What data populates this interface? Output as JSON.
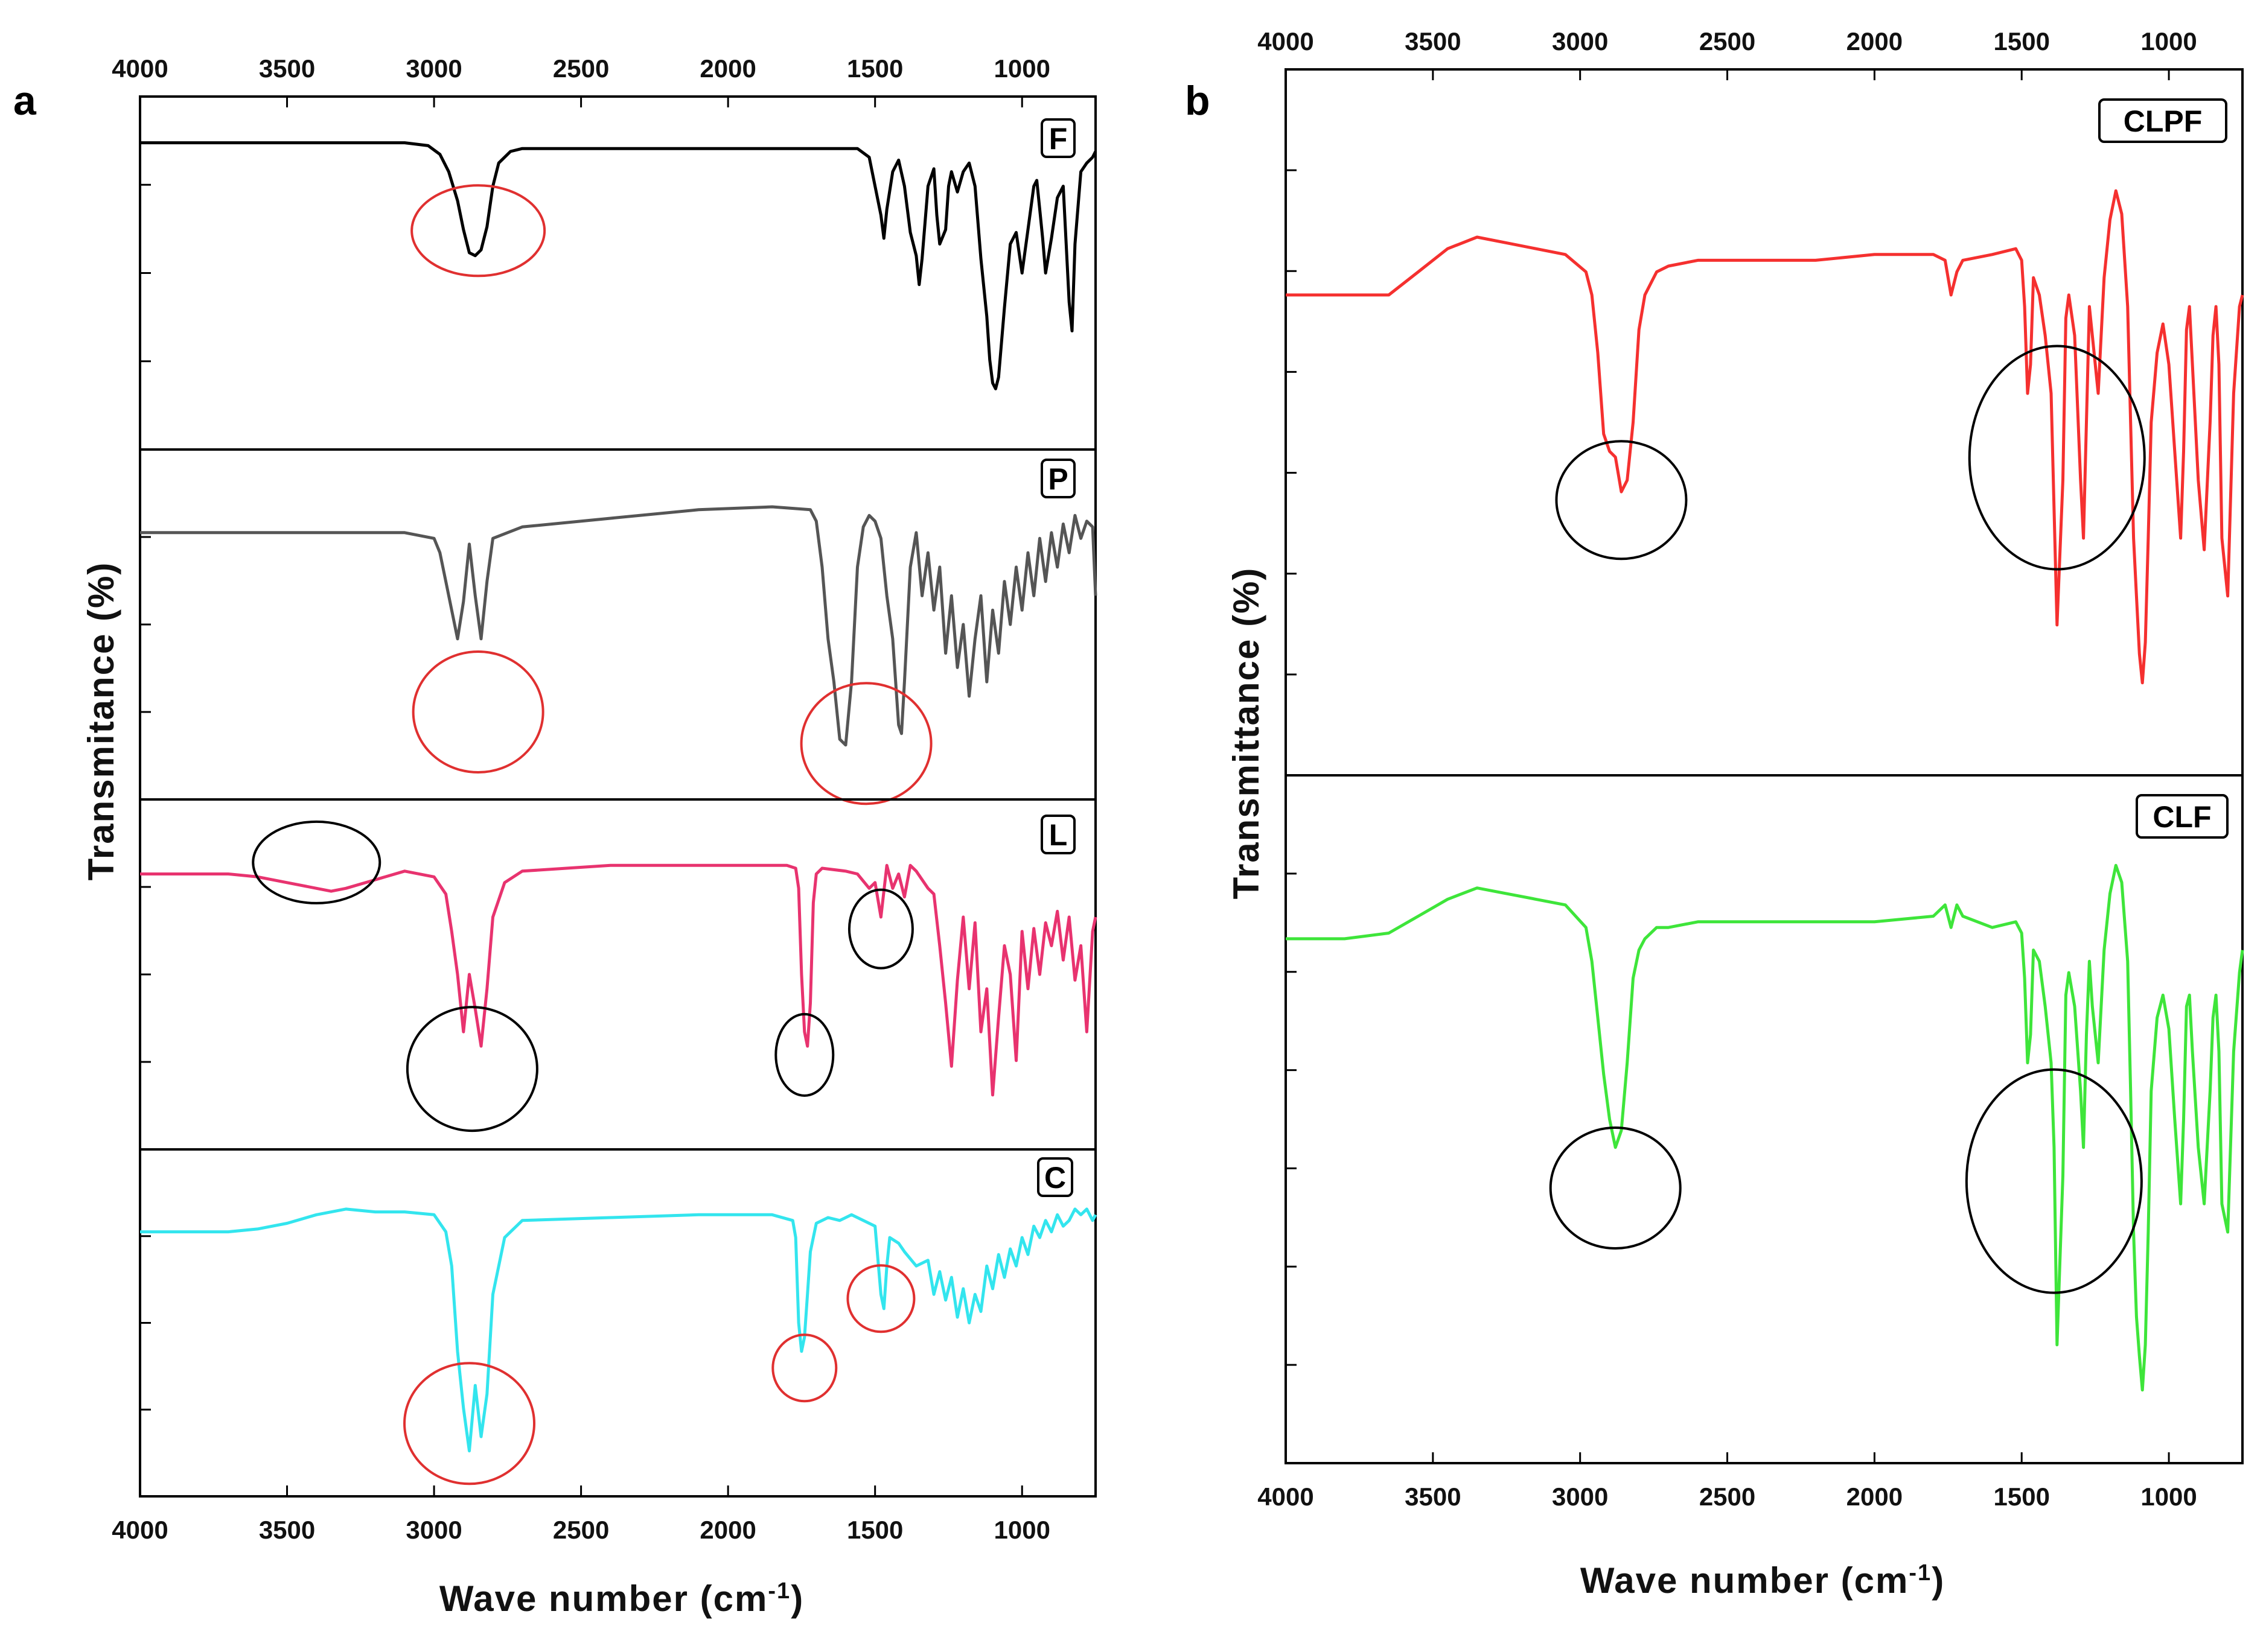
{
  "chart_data": [
    {
      "type": "line",
      "panel_label": "a",
      "title": "",
      "xlabel": "Wave number (cm",
      "xlabel_sup": "-1",
      "xlabel_close": ")",
      "ylabel": "Transmitance (%)",
      "xlim": [
        4000,
        750
      ],
      "x_ticks": [
        4000,
        3500,
        3000,
        2500,
        2000,
        1500,
        1000
      ],
      "grid": false,
      "series": [
        {
          "name": "F",
          "color": "#000000",
          "x": [
            4000,
            3700,
            3400,
            3100,
            3020,
            2980,
            2950,
            2920,
            2900,
            2880,
            2860,
            2840,
            2820,
            2800,
            2780,
            2740,
            2700,
            2400,
            2100,
            1800,
            1560,
            1520,
            1500,
            1480,
            1470,
            1460,
            1440,
            1420,
            1400,
            1380,
            1360,
            1350,
            1340,
            1320,
            1300,
            1290,
            1280,
            1260,
            1250,
            1240,
            1220,
            1200,
            1180,
            1160,
            1140,
            1120,
            1110,
            1100,
            1090,
            1080,
            1060,
            1040,
            1020,
            1000,
            980,
            960,
            950,
            940,
            930,
            920,
            900,
            880,
            860,
            850,
            840,
            830,
            820,
            800,
            780,
            760,
            750
          ],
          "y": [
            95,
            95,
            95,
            95,
            94,
            91,
            85,
            75,
            65,
            57,
            56,
            58,
            66,
            80,
            88,
            92,
            93,
            93,
            93,
            93,
            93,
            90,
            80,
            70,
            62,
            72,
            85,
            89,
            80,
            64,
            56,
            46,
            55,
            80,
            86,
            70,
            60,
            65,
            80,
            85,
            78,
            85,
            88,
            80,
            55,
            35,
            20,
            12,
            10,
            14,
            38,
            60,
            64,
            50,
            65,
            80,
            82,
            72,
            62,
            50,
            62,
            76,
            80,
            60,
            40,
            30,
            60,
            85,
            88,
            90,
            92
          ]
        },
        {
          "name": "P",
          "color": "#555555",
          "x": [
            4000,
            3700,
            3400,
            3100,
            3000,
            2980,
            2960,
            2940,
            2920,
            2900,
            2880,
            2860,
            2840,
            2820,
            2800,
            2700,
            2400,
            2100,
            1850,
            1720,
            1700,
            1680,
            1660,
            1640,
            1620,
            1600,
            1580,
            1560,
            1540,
            1520,
            1500,
            1480,
            1460,
            1440,
            1420,
            1410,
            1400,
            1380,
            1360,
            1340,
            1320,
            1300,
            1280,
            1260,
            1240,
            1220,
            1200,
            1180,
            1160,
            1140,
            1120,
            1100,
            1080,
            1060,
            1040,
            1020,
            1000,
            980,
            960,
            940,
            920,
            900,
            880,
            860,
            840,
            820,
            800,
            780,
            760,
            750
          ],
          "y": [
            82,
            82,
            82,
            82,
            80,
            75,
            65,
            55,
            45,
            58,
            78,
            60,
            45,
            65,
            80,
            84,
            87,
            90,
            91,
            90,
            86,
            70,
            45,
            30,
            10,
            8,
            30,
            70,
            84,
            88,
            86,
            80,
            60,
            45,
            15,
            12,
            30,
            70,
            82,
            60,
            75,
            55,
            70,
            40,
            60,
            35,
            50,
            25,
            45,
            60,
            30,
            55,
            40,
            65,
            50,
            70,
            55,
            75,
            60,
            80,
            65,
            82,
            70,
            85,
            75,
            88,
            80,
            86,
            84,
            60
          ]
        },
        {
          "name": "L",
          "color": "#E8336F",
          "x": [
            4000,
            3700,
            3600,
            3500,
            3400,
            3350,
            3300,
            3200,
            3100,
            3000,
            2960,
            2940,
            2920,
            2900,
            2880,
            2860,
            2840,
            2820,
            2800,
            2760,
            2700,
            2400,
            2100,
            1800,
            1770,
            1760,
            1750,
            1740,
            1730,
            1720,
            1710,
            1700,
            1680,
            1600,
            1560,
            1520,
            1500,
            1480,
            1460,
            1440,
            1420,
            1400,
            1380,
            1360,
            1320,
            1300,
            1280,
            1260,
            1240,
            1220,
            1200,
            1180,
            1160,
            1140,
            1120,
            1100,
            1080,
            1060,
            1040,
            1020,
            1000,
            980,
            960,
            940,
            920,
            900,
            880,
            860,
            840,
            820,
            800,
            780,
            760,
            750
          ],
          "y": [
            85,
            85,
            84,
            82,
            80,
            79,
            80,
            83,
            86,
            84,
            78,
            65,
            50,
            30,
            50,
            38,
            25,
            45,
            70,
            82,
            86,
            88,
            88,
            88,
            87,
            80,
            50,
            30,
            25,
            40,
            75,
            85,
            87,
            86,
            85,
            80,
            82,
            70,
            88,
            80,
            85,
            77,
            88,
            86,
            80,
            78,
            60,
            40,
            18,
            48,
            70,
            45,
            68,
            30,
            45,
            8,
            35,
            60,
            50,
            20,
            65,
            45,
            66,
            50,
            68,
            60,
            72,
            55,
            70,
            48,
            60,
            30,
            65,
            70
          ]
        },
        {
          "name": "C",
          "color": "#33E5EE",
          "x": [
            4000,
            3700,
            3600,
            3500,
            3400,
            3300,
            3200,
            3100,
            3000,
            2960,
            2940,
            2920,
            2900,
            2880,
            2860,
            2840,
            2820,
            2800,
            2760,
            2700,
            2400,
            2100,
            1850,
            1780,
            1770,
            1760,
            1750,
            1740,
            1730,
            1720,
            1700,
            1660,
            1620,
            1580,
            1540,
            1500,
            1480,
            1470,
            1460,
            1450,
            1420,
            1400,
            1360,
            1320,
            1300,
            1280,
            1260,
            1240,
            1220,
            1200,
            1180,
            1160,
            1140,
            1120,
            1100,
            1080,
            1060,
            1040,
            1020,
            1000,
            980,
            960,
            940,
            920,
            900,
            880,
            860,
            840,
            820,
            800,
            780,
            760,
            750
          ],
          "y": [
            82,
            82,
            83,
            85,
            88,
            90,
            89,
            89,
            88,
            82,
            70,
            40,
            20,
            5,
            28,
            10,
            25,
            60,
            80,
            86,
            87,
            88,
            88,
            86,
            80,
            50,
            40,
            45,
            60,
            75,
            85,
            87,
            86,
            88,
            86,
            84,
            60,
            55,
            70,
            80,
            78,
            75,
            70,
            72,
            60,
            68,
            58,
            66,
            52,
            62,
            50,
            60,
            54,
            70,
            62,
            74,
            66,
            76,
            70,
            80,
            74,
            84,
            80,
            86,
            82,
            88,
            84,
            86,
            90,
            88,
            90,
            86,
            88
          ]
        }
      ],
      "legend": [
        "F",
        "P",
        "L",
        "C"
      ],
      "annotations": "red and black ellipses highlight characteristic bands"
    },
    {
      "type": "line",
      "panel_label": "b",
      "title": "",
      "xlabel": "Wave number (cm",
      "xlabel_sup": "-1",
      "xlabel_close": ")",
      "ylabel": "Transmittance (%)",
      "xlim": [
        4000,
        750
      ],
      "x_ticks": [
        4000,
        3500,
        3000,
        2500,
        2000,
        1500,
        1000
      ],
      "grid": false,
      "series": [
        {
          "name": "CLPF",
          "color": "#F5302F",
          "x": [
            4000,
            3800,
            3650,
            3550,
            3450,
            3350,
            3250,
            3150,
            3050,
            2980,
            2960,
            2940,
            2920,
            2900,
            2880,
            2860,
            2840,
            2820,
            2800,
            2780,
            2740,
            2700,
            2600,
            2400,
            2200,
            2000,
            1800,
            1760,
            1740,
            1720,
            1700,
            1600,
            1520,
            1500,
            1490,
            1480,
            1470,
            1460,
            1440,
            1420,
            1400,
            1390,
            1380,
            1360,
            1350,
            1340,
            1320,
            1300,
            1290,
            1280,
            1270,
            1260,
            1240,
            1220,
            1200,
            1180,
            1160,
            1140,
            1130,
            1120,
            1110,
            1100,
            1090,
            1080,
            1070,
            1060,
            1040,
            1020,
            1000,
            980,
            960,
            950,
            940,
            930,
            920,
            900,
            880,
            860,
            850,
            840,
            830,
            820,
            800,
            780,
            760,
            750
          ],
          "y": [
            72,
            72,
            72,
            76,
            80,
            82,
            81,
            80,
            79,
            76,
            72,
            62,
            48,
            45,
            44,
            38,
            40,
            50,
            66,
            72,
            76,
            77,
            78,
            78,
            78,
            79,
            79,
            78,
            72,
            76,
            78,
            79,
            80,
            78,
            70,
            55,
            60,
            75,
            72,
            65,
            55,
            35,
            15,
            40,
            68,
            72,
            65,
            40,
            30,
            50,
            70,
            65,
            55,
            75,
            85,
            90,
            86,
            70,
            50,
            30,
            20,
            10,
            5,
            12,
            30,
            50,
            62,
            67,
            60,
            45,
            30,
            45,
            66,
            70,
            60,
            40,
            28,
            50,
            65,
            70,
            60,
            30,
            20,
            55,
            70,
            72
          ]
        },
        {
          "name": "CLF",
          "color": "#3EE53A",
          "x": [
            4000,
            3800,
            3650,
            3550,
            3450,
            3350,
            3250,
            3150,
            3050,
            2980,
            2960,
            2940,
            2920,
            2900,
            2880,
            2860,
            2840,
            2820,
            2800,
            2780,
            2740,
            2700,
            2600,
            2400,
            2200,
            2000,
            1800,
            1760,
            1740,
            1720,
            1700,
            1600,
            1520,
            1500,
            1490,
            1480,
            1470,
            1460,
            1440,
            1420,
            1400,
            1390,
            1380,
            1360,
            1350,
            1340,
            1320,
            1300,
            1290,
            1280,
            1270,
            1260,
            1240,
            1220,
            1200,
            1180,
            1160,
            1140,
            1130,
            1120,
            1110,
            1100,
            1090,
            1080,
            1070,
            1060,
            1040,
            1020,
            1000,
            980,
            960,
            950,
            940,
            930,
            920,
            900,
            880,
            860,
            850,
            840,
            830,
            820,
            800,
            780,
            760,
            750
          ],
          "y": [
            82,
            82,
            83,
            86,
            89,
            91,
            90,
            89,
            88,
            84,
            78,
            68,
            58,
            50,
            45,
            48,
            60,
            75,
            80,
            82,
            84,
            84,
            85,
            85,
            85,
            85,
            86,
            88,
            84,
            88,
            86,
            84,
            85,
            83,
            75,
            60,
            65,
            80,
            78,
            70,
            60,
            45,
            10,
            40,
            72,
            76,
            70,
            55,
            45,
            65,
            78,
            70,
            60,
            80,
            90,
            95,
            92,
            78,
            55,
            30,
            15,
            8,
            2,
            10,
            30,
            55,
            68,
            72,
            66,
            50,
            35,
            50,
            70,
            72,
            62,
            45,
            35,
            55,
            68,
            72,
            62,
            35,
            30,
            62,
            76,
            80
          ]
        }
      ],
      "legend": [
        "CLPF",
        "CLF"
      ],
      "annotations": "black ellipses highlight characteristic bands"
    }
  ]
}
